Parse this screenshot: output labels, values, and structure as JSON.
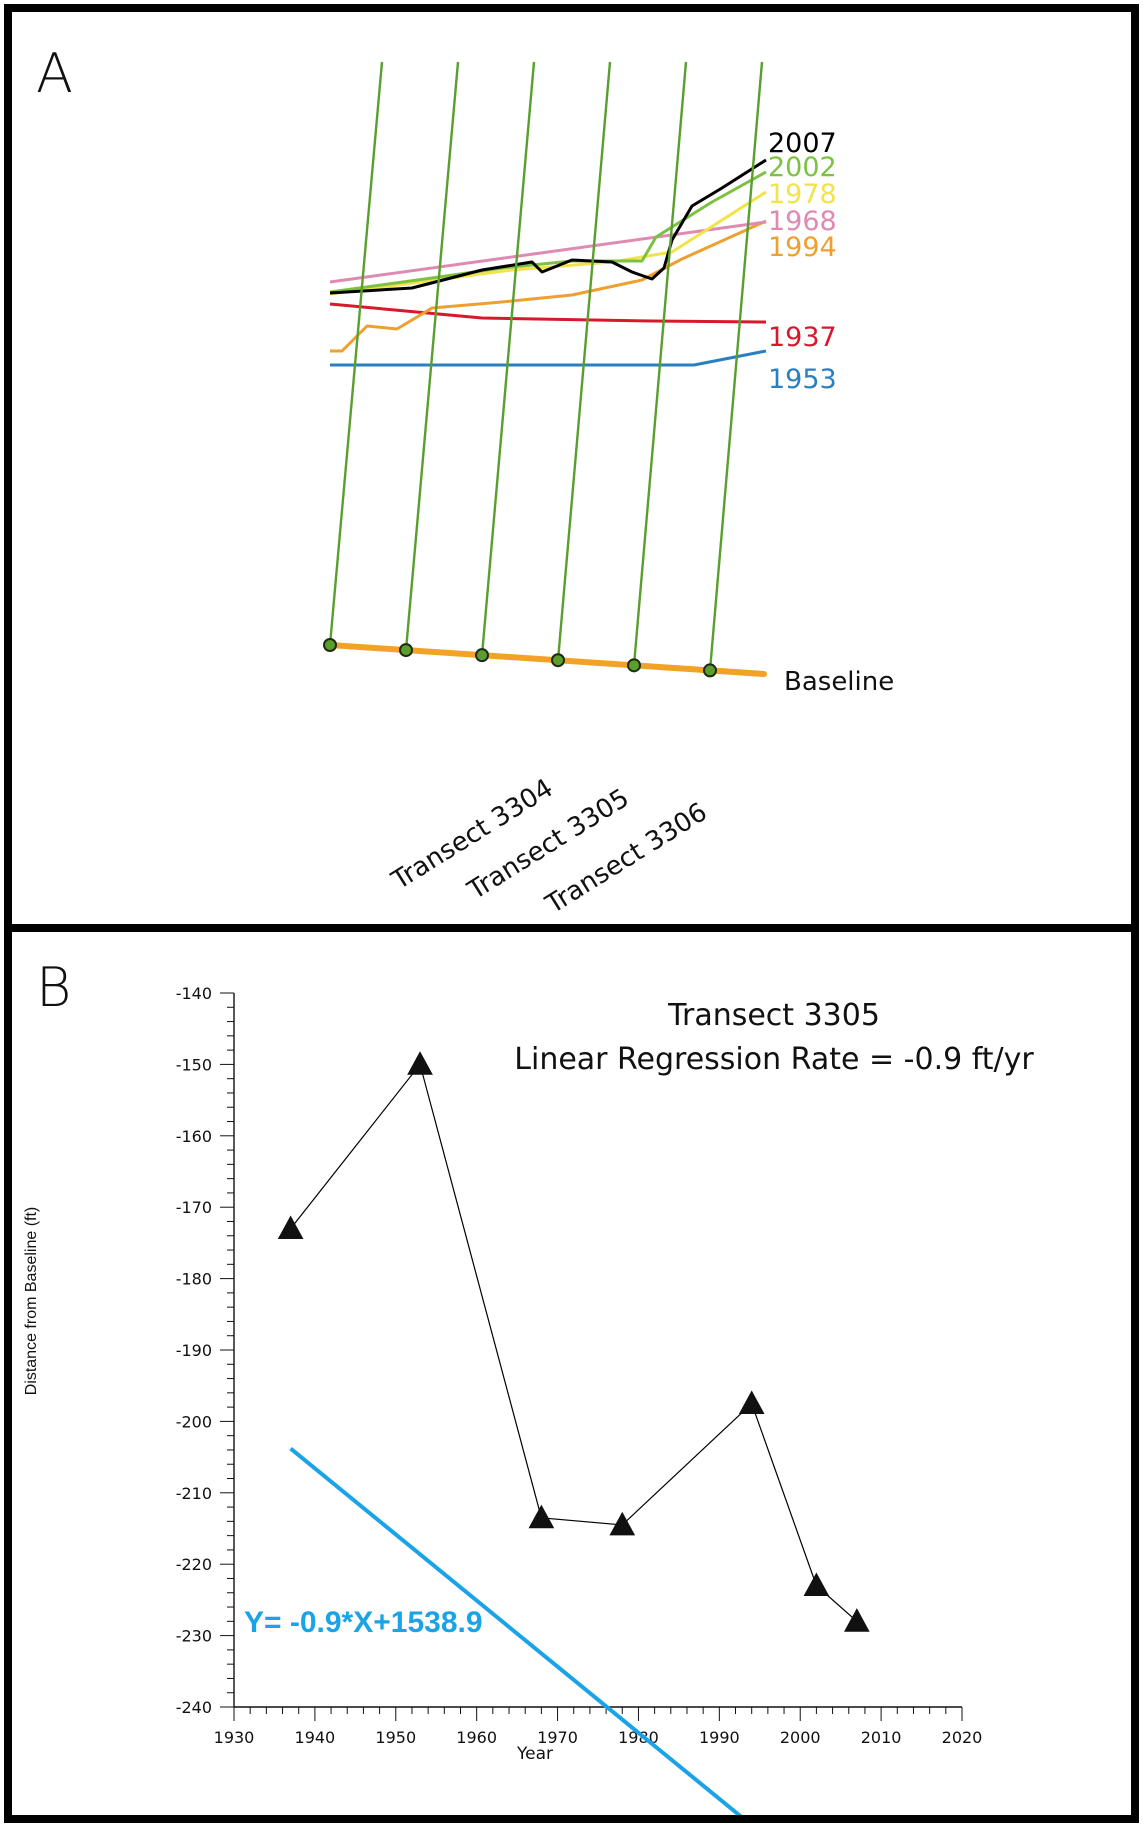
{
  "panels": {
    "a": {
      "letter": "A",
      "shorelines": [
        {
          "year": "2007",
          "color": "#000000"
        },
        {
          "year": "2002",
          "color": "#7dc142"
        },
        {
          "year": "1978",
          "color": "#f2e34a"
        },
        {
          "year": "1968",
          "color": "#e08ab3"
        },
        {
          "year": "1994",
          "color": "#eda030"
        },
        {
          "year": "1937",
          "color": "#d7192b"
        },
        {
          "year": "1953",
          "color": "#2a7fc0"
        }
      ],
      "transect_color": "#5a9e2e",
      "baseline": {
        "label": "Baseline",
        "color": "#f2a227"
      },
      "transect_labels": [
        "Transect 3304",
        "Transect 3305",
        "Transect 3306"
      ]
    },
    "b": {
      "letter": "B",
      "equation": "Y= -0.9*X+1538.9",
      "title_line1": "Transect 3305",
      "title_line2": "Linear Regression Rate = -0.9 ft/yr"
    }
  },
  "chart_data": {
    "type": "scatter",
    "title": "Transect 3305",
    "subtitle": "Linear Regression Rate = -0.9 ft/yr",
    "xlabel": "Year",
    "ylabel": "Distance from Baseline (ft)",
    "xlim": [
      1930,
      2020
    ],
    "ylim": [
      -240,
      -140
    ],
    "xticks": [
      1930,
      1940,
      1950,
      1960,
      1970,
      1980,
      1990,
      2000,
      2010,
      2020
    ],
    "yticks": [
      -140,
      -150,
      -160,
      -170,
      -180,
      -190,
      -200,
      -210,
      -220,
      -230,
      -240
    ],
    "series": [
      {
        "x": [
          1937,
          1953,
          1968,
          1978,
          1994,
          2002,
          2007
        ],
        "y": [
          -173,
          -150,
          -213.5,
          -214.5,
          -197.5,
          -223,
          -228
        ],
        "color": "#000000",
        "marker": "triangle"
      }
    ],
    "regression": {
      "slope": -0.9,
      "intercept": 1538.9,
      "x_range": [
        1937,
        2007
      ],
      "color": "#1aa3e6"
    },
    "grid": false
  }
}
